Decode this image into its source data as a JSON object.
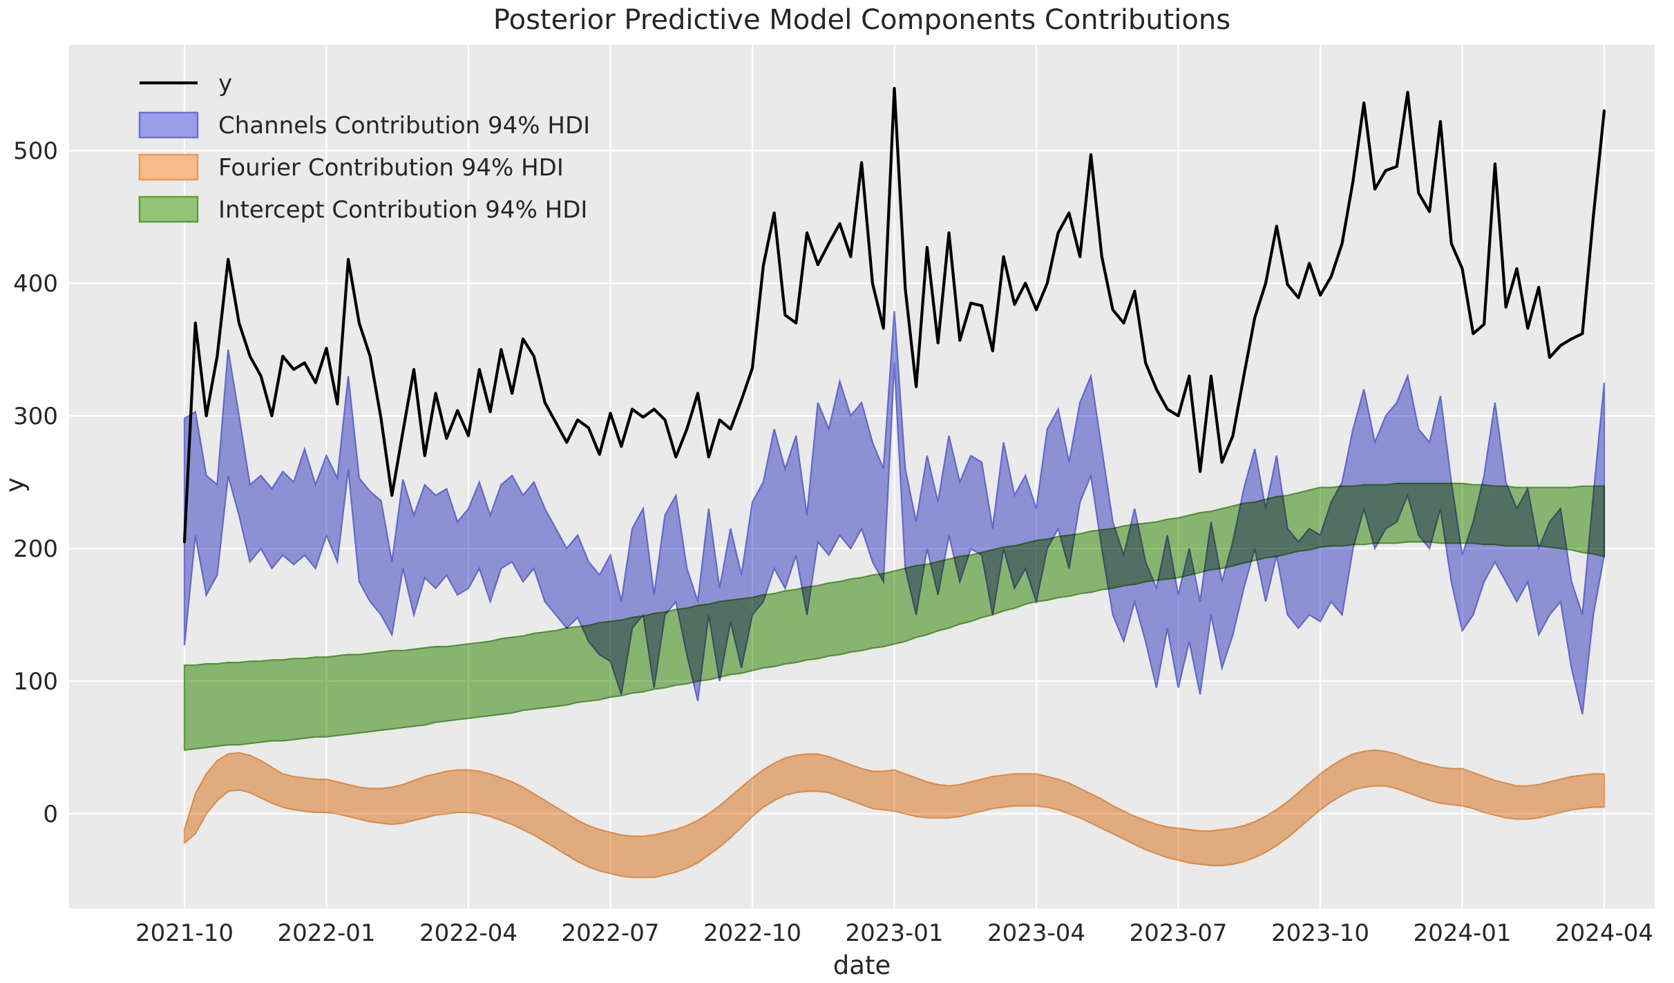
{
  "chart_data": {
    "type": "line+area",
    "title": "Posterior Predictive Model Components Contributions",
    "xlabel": "date",
    "ylabel": "y",
    "grid": true,
    "legend_position": "upper-left",
    "x_tick_labels": [
      "2021-10",
      "2022-01",
      "2022-04",
      "2022-07",
      "2022-10",
      "2023-01",
      "2023-04",
      "2023-07",
      "2023-10",
      "2024-01",
      "2024-04"
    ],
    "y_ticks": [
      0,
      100,
      200,
      300,
      400,
      500
    ],
    "ylim": [
      -70,
      580
    ],
    "legend": [
      {
        "label": "y",
        "swatch": "line",
        "series": "y"
      },
      {
        "label": "Channels Contribution 94% HDI",
        "swatch": "patch",
        "series": "channels"
      },
      {
        "label": "Fourier Contribution 94% HDI",
        "swatch": "patch",
        "series": "fourier"
      },
      {
        "label": "Intercept Contribution 94% HDI",
        "swatch": "patch",
        "series": "intercept"
      }
    ],
    "colors": {
      "plot_bg": "#eaeaea",
      "grid": "#ffffff",
      "y_line": "#000000",
      "channels_fill": "#9a9ee6",
      "channels_edge": "#6b70dc",
      "fourier_fill": "#f6bb8c",
      "fourier_edge": "#ec9a55",
      "intercept_fill": "#93c478",
      "intercept_edge": "#5c9c3e",
      "text": "#262626"
    },
    "dates": [
      "2021-10-04",
      "2021-10-11",
      "2021-10-18",
      "2021-10-25",
      "2021-11-01",
      "2021-11-08",
      "2021-11-15",
      "2021-11-22",
      "2021-11-29",
      "2021-12-06",
      "2021-12-13",
      "2021-12-20",
      "2021-12-27",
      "2022-01-03",
      "2022-01-10",
      "2022-01-17",
      "2022-01-24",
      "2022-01-31",
      "2022-02-07",
      "2022-02-14",
      "2022-02-21",
      "2022-02-28",
      "2022-03-07",
      "2022-03-14",
      "2022-03-21",
      "2022-03-28",
      "2022-04-04",
      "2022-04-11",
      "2022-04-18",
      "2022-04-25",
      "2022-05-02",
      "2022-05-09",
      "2022-05-16",
      "2022-05-23",
      "2022-05-30",
      "2022-06-06",
      "2022-06-13",
      "2022-06-20",
      "2022-06-27",
      "2022-07-04",
      "2022-07-11",
      "2022-07-18",
      "2022-07-25",
      "2022-08-01",
      "2022-08-08",
      "2022-08-15",
      "2022-08-22",
      "2022-08-29",
      "2022-09-05",
      "2022-09-12",
      "2022-09-19",
      "2022-09-26",
      "2022-10-03",
      "2022-10-10",
      "2022-10-17",
      "2022-10-24",
      "2022-10-31",
      "2022-11-07",
      "2022-11-14",
      "2022-11-21",
      "2022-11-28",
      "2022-12-05",
      "2022-12-12",
      "2022-12-19",
      "2022-12-26",
      "2023-01-02",
      "2023-01-09",
      "2023-01-16",
      "2023-01-23",
      "2023-01-30",
      "2023-02-06",
      "2023-02-13",
      "2023-02-20",
      "2023-02-27",
      "2023-03-06",
      "2023-03-13",
      "2023-03-20",
      "2023-03-27",
      "2023-04-03",
      "2023-04-10",
      "2023-04-17",
      "2023-04-24",
      "2023-05-01",
      "2023-05-08",
      "2023-05-15",
      "2023-05-22",
      "2023-05-29",
      "2023-06-05",
      "2023-06-12",
      "2023-06-19",
      "2023-06-26",
      "2023-07-03",
      "2023-07-10",
      "2023-07-17",
      "2023-07-24",
      "2023-07-31",
      "2023-08-07",
      "2023-08-14",
      "2023-08-21",
      "2023-08-28",
      "2023-09-04",
      "2023-09-11",
      "2023-09-18",
      "2023-09-25",
      "2023-10-02",
      "2023-10-09",
      "2023-10-16",
      "2023-10-23",
      "2023-10-30",
      "2023-11-06",
      "2023-11-13",
      "2023-11-20",
      "2023-11-27",
      "2023-12-04",
      "2023-12-11",
      "2023-12-18",
      "2023-12-25",
      "2024-01-01",
      "2024-01-08",
      "2024-01-15",
      "2024-01-22",
      "2024-01-29",
      "2024-02-05",
      "2024-02-12",
      "2024-02-19",
      "2024-02-26",
      "2024-03-04",
      "2024-03-11",
      "2024-03-18",
      "2024-03-25",
      "2024-04-01"
    ],
    "series": {
      "y": [
        205,
        370,
        300,
        345,
        418,
        370,
        345,
        330,
        300,
        345,
        335,
        340,
        325,
        351,
        309,
        418,
        370,
        345,
        298,
        240,
        288,
        335,
        270,
        317,
        283,
        304,
        285,
        335,
        303,
        350,
        317,
        358,
        345,
        310,
        295,
        280,
        297,
        291,
        271,
        302,
        277,
        305,
        299,
        305,
        297,
        269,
        290,
        317,
        269,
        297,
        290,
        312,
        336,
        413,
        453,
        376,
        370,
        438,
        414,
        430,
        445,
        420,
        491,
        400,
        366,
        547,
        396,
        322,
        427,
        355,
        438,
        357,
        385,
        383,
        349,
        420,
        384,
        400,
        380,
        400,
        438,
        453,
        420,
        497,
        420,
        380,
        370,
        394,
        340,
        320,
        305,
        300,
        330,
        258,
        330,
        265,
        285,
        330,
        374,
        400,
        443,
        399,
        389,
        415,
        391,
        405,
        430,
        477,
        536,
        471,
        485,
        488,
        544,
        468,
        454,
        522,
        430,
        411,
        362,
        369,
        490,
        382,
        411,
        366,
        397,
        344,
        353,
        358,
        362,
        450,
        530
      ],
      "channels_hdi_lower": [
        127,
        210,
        165,
        180,
        255,
        225,
        190,
        200,
        185,
        195,
        188,
        195,
        185,
        210,
        190,
        260,
        175,
        160,
        150,
        135,
        185,
        150,
        178,
        170,
        180,
        165,
        170,
        185,
        160,
        185,
        190,
        175,
        185,
        160,
        150,
        140,
        148,
        130,
        120,
        115,
        90,
        140,
        150,
        95,
        150,
        160,
        120,
        85,
        150,
        100,
        145,
        110,
        150,
        160,
        185,
        170,
        195,
        150,
        205,
        195,
        210,
        200,
        215,
        190,
        175,
        340,
        185,
        150,
        200,
        165,
        210,
        175,
        200,
        195,
        150,
        200,
        170,
        185,
        160,
        200,
        215,
        185,
        235,
        255,
        200,
        150,
        130,
        160,
        130,
        95,
        140,
        95,
        130,
        90,
        150,
        110,
        135,
        170,
        200,
        160,
        195,
        150,
        140,
        150,
        145,
        160,
        150,
        200,
        230,
        200,
        215,
        220,
        240,
        210,
        200,
        230,
        175,
        138,
        150,
        175,
        190,
        175,
        160,
        175,
        135,
        150,
        160,
        110,
        75,
        150,
        195
      ],
      "channels_hdi_upper": [
        298,
        303,
        255,
        248,
        350,
        300,
        248,
        255,
        245,
        258,
        250,
        275,
        248,
        270,
        253,
        330,
        253,
        243,
        236,
        190,
        252,
        225,
        248,
        240,
        245,
        220,
        230,
        250,
        225,
        248,
        255,
        240,
        250,
        230,
        215,
        200,
        210,
        190,
        180,
        195,
        160,
        215,
        230,
        165,
        225,
        240,
        185,
        160,
        230,
        170,
        215,
        180,
        235,
        250,
        290,
        260,
        285,
        225,
        310,
        290,
        326,
        300,
        310,
        280,
        260,
        379,
        260,
        220,
        270,
        235,
        285,
        250,
        270,
        265,
        215,
        280,
        240,
        255,
        230,
        290,
        305,
        265,
        310,
        330,
        275,
        220,
        195,
        230,
        190,
        170,
        210,
        165,
        200,
        160,
        220,
        175,
        205,
        245,
        275,
        230,
        270,
        215,
        205,
        215,
        210,
        235,
        250,
        290,
        320,
        280,
        300,
        310,
        330,
        290,
        280,
        315,
        250,
        195,
        220,
        255,
        310,
        250,
        230,
        245,
        200,
        220,
        230,
        175,
        150,
        240,
        325
      ],
      "fourier_hdi_lower": [
        -22,
        -15,
        0,
        10,
        17,
        18,
        16,
        12,
        8,
        5,
        3,
        2,
        1,
        1,
        0,
        -2,
        -4,
        -6,
        -7,
        -8,
        -7,
        -5,
        -3,
        -1,
        0,
        1,
        1,
        0,
        -2,
        -5,
        -8,
        -12,
        -16,
        -21,
        -26,
        -31,
        -36,
        -40,
        -43,
        -45,
        -47,
        -48,
        -48,
        -48,
        -46,
        -44,
        -41,
        -37,
        -31,
        -25,
        -18,
        -10,
        -2,
        5,
        10,
        14,
        16,
        17,
        17,
        16,
        13,
        10,
        7,
        4,
        3,
        2,
        0,
        -2,
        -3,
        -3,
        -3,
        -2,
        0,
        2,
        4,
        5,
        6,
        6,
        6,
        5,
        3,
        0,
        -3,
        -7,
        -11,
        -15,
        -19,
        -23,
        -27,
        -30,
        -33,
        -35,
        -37,
        -38,
        -39,
        -39,
        -38,
        -36,
        -33,
        -29,
        -24,
        -18,
        -11,
        -4,
        3,
        9,
        14,
        18,
        20,
        21,
        21,
        19,
        16,
        13,
        10,
        8,
        7,
        6,
        4,
        1,
        -1,
        -3,
        -4,
        -4,
        -3,
        -1,
        1,
        3,
        4,
        5,
        5
      ],
      "fourier_hdi_upper": [
        -12,
        15,
        30,
        40,
        45,
        46,
        44,
        40,
        35,
        30,
        28,
        27,
        26,
        26,
        24,
        22,
        20,
        19,
        19,
        20,
        22,
        25,
        28,
        30,
        32,
        33,
        33,
        32,
        30,
        27,
        24,
        20,
        15,
        10,
        5,
        0,
        -5,
        -9,
        -12,
        -14,
        -16,
        -17,
        -17,
        -16,
        -14,
        -12,
        -9,
        -5,
        0,
        6,
        13,
        20,
        27,
        33,
        38,
        42,
        44,
        45,
        45,
        43,
        40,
        37,
        34,
        32,
        32,
        33,
        30,
        27,
        24,
        22,
        21,
        22,
        24,
        26,
        28,
        29,
        30,
        30,
        30,
        28,
        26,
        23,
        19,
        15,
        11,
        6,
        2,
        -2,
        -5,
        -8,
        -10,
        -11,
        -12,
        -13,
        -13,
        -12,
        -11,
        -9,
        -6,
        -2,
        3,
        9,
        16,
        23,
        30,
        36,
        41,
        45,
        47,
        48,
        47,
        45,
        42,
        39,
        37,
        35,
        34,
        34,
        31,
        28,
        25,
        23,
        21,
        21,
        22,
        24,
        26,
        28,
        29,
        30,
        30
      ],
      "intercept_hdi_lower": [
        48,
        49,
        50,
        51,
        52,
        52,
        53,
        54,
        55,
        55,
        56,
        57,
        58,
        58,
        59,
        60,
        61,
        62,
        63,
        64,
        65,
        66,
        67,
        69,
        70,
        71,
        72,
        73,
        74,
        75,
        76,
        78,
        79,
        80,
        81,
        82,
        84,
        85,
        86,
        88,
        89,
        91,
        92,
        94,
        95,
        97,
        98,
        100,
        101,
        103,
        105,
        106,
        108,
        110,
        111,
        113,
        114,
        116,
        117,
        119,
        120,
        122,
        123,
        125,
        126,
        128,
        130,
        133,
        135,
        138,
        140,
        143,
        145,
        148,
        150,
        153,
        155,
        158,
        160,
        161,
        163,
        164,
        166,
        167,
        169,
        170,
        172,
        173,
        175,
        176,
        177,
        178,
        180,
        182,
        184,
        185,
        187,
        189,
        191,
        193,
        194,
        196,
        198,
        199,
        201,
        202,
        202,
        203,
        203,
        204,
        204,
        204,
        205,
        205,
        205,
        204,
        204,
        204,
        204,
        203,
        203,
        202,
        202,
        202,
        202,
        201,
        200,
        199,
        197,
        196,
        194
      ],
      "intercept_hdi_upper": [
        112,
        112,
        113,
        113,
        114,
        114,
        115,
        115,
        116,
        116,
        117,
        117,
        118,
        118,
        119,
        120,
        120,
        121,
        122,
        123,
        123,
        124,
        125,
        126,
        126,
        127,
        128,
        129,
        130,
        132,
        133,
        134,
        136,
        137,
        138,
        140,
        141,
        142,
        144,
        145,
        146,
        148,
        149,
        151,
        152,
        154,
        155,
        157,
        158,
        160,
        161,
        162,
        163,
        165,
        166,
        168,
        169,
        171,
        172,
        174,
        175,
        177,
        178,
        180,
        181,
        183,
        185,
        187,
        188,
        190,
        192,
        194,
        195,
        197,
        199,
        201,
        202,
        204,
        206,
        207,
        209,
        210,
        211,
        213,
        214,
        215,
        217,
        218,
        219,
        220,
        222,
        223,
        225,
        227,
        228,
        230,
        232,
        234,
        235,
        237,
        239,
        240,
        242,
        244,
        246,
        246,
        247,
        247,
        248,
        248,
        248,
        249,
        249,
        249,
        249,
        249,
        249,
        249,
        248,
        248,
        247,
        247,
        246,
        246,
        246,
        246,
        246,
        246,
        247,
        247,
        247
      ]
    }
  }
}
